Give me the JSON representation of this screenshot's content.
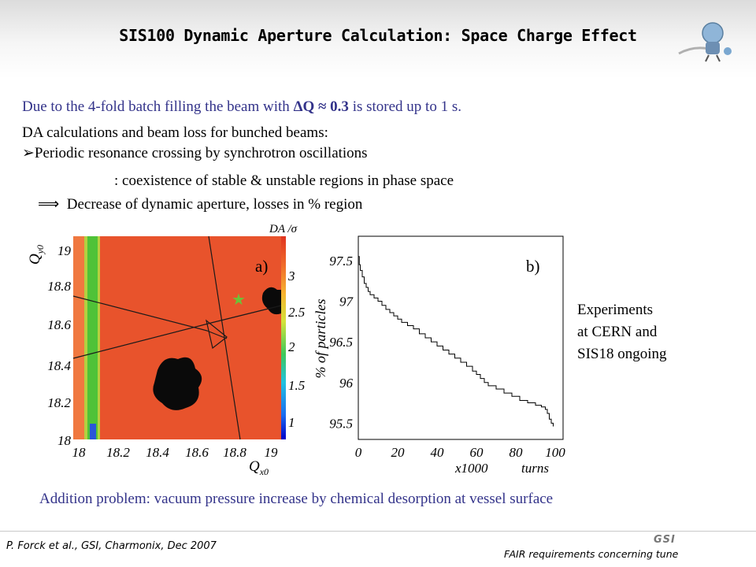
{
  "title": "SIS100 Dynamic Aperture Calculation: Space Charge Effect",
  "body": {
    "line1_pre": "Due to the 4-fold batch filling the beam with ",
    "line1_bold": "ΔQ ≈ 0.3",
    "line1_post": " is stored up to 1 s.",
    "line2": "DA calculations and beam loss for bunched beams:",
    "bullet_symbol": "➢",
    "line3": "Periodic resonance crossing by synchrotron oscillations",
    "line4": ": coexistence of stable & unstable regions in phase space",
    "arrow_symbol": "⟹",
    "line5": "Decrease of dynamic aperture, losses in % region"
  },
  "plot_a": {
    "panel_label": "a)",
    "colorbar_label": "DA /σ",
    "colorbar_ticks": [
      "3",
      "2.5",
      "2",
      "1.5",
      "1"
    ],
    "y_axis_label": "Q",
    "y_axis_sub": "y0",
    "y_ticks": [
      "19",
      "18.8",
      "18.6",
      "18.4",
      "18.2",
      "18"
    ],
    "x_axis_label": "Q",
    "x_axis_sub": "x0",
    "x_ticks": [
      "18",
      "18.2",
      "18.4",
      "18.6",
      "18.8",
      "19"
    ],
    "marker_symbol": "★",
    "colors": {
      "main": "#e8532c",
      "edge": "#f07840",
      "band": "#4fc238",
      "island": "#0a0a0a",
      "marker": "#6dc238"
    }
  },
  "plot_b": {
    "panel_label": "b)",
    "y_axis_label": "% of particles",
    "y_ticks": [
      "97.5",
      "97",
      "96.5",
      "96",
      "95.5"
    ],
    "x_ticks": [
      "0",
      "20",
      "40",
      "60",
      "80",
      "100"
    ],
    "x_label_left": "x1000",
    "x_label_right": "turns",
    "ylim": [
      95.3,
      97.8
    ],
    "xlim": [
      0,
      104
    ],
    "curve": [
      [
        0,
        97.55
      ],
      [
        0.5,
        97.45
      ],
      [
        1,
        97.38
      ],
      [
        2,
        97.3
      ],
      [
        3,
        97.22
      ],
      [
        4,
        97.17
      ],
      [
        5,
        97.12
      ],
      [
        6,
        97.08
      ],
      [
        8,
        97.04
      ],
      [
        10,
        97.0
      ],
      [
        12,
        96.95
      ],
      [
        14,
        96.9
      ],
      [
        16,
        96.86
      ],
      [
        18,
        96.82
      ],
      [
        20,
        96.78
      ],
      [
        22,
        96.74
      ],
      [
        25,
        96.7
      ],
      [
        28,
        96.66
      ],
      [
        31,
        96.6
      ],
      [
        34,
        96.55
      ],
      [
        37,
        96.5
      ],
      [
        40,
        96.45
      ],
      [
        43,
        96.4
      ],
      [
        46,
        96.35
      ],
      [
        49,
        96.3
      ],
      [
        52,
        96.25
      ],
      [
        55,
        96.2
      ],
      [
        58,
        96.14
      ],
      [
        60,
        96.1
      ],
      [
        62,
        96.05
      ],
      [
        64,
        96.0
      ],
      [
        66,
        95.96
      ],
      [
        70,
        95.92
      ],
      [
        74,
        95.87
      ],
      [
        78,
        95.83
      ],
      [
        82,
        95.78
      ],
      [
        86,
        95.75
      ],
      [
        90,
        95.72
      ],
      [
        93,
        95.7
      ],
      [
        95,
        95.67
      ],
      [
        96,
        95.62
      ],
      [
        97,
        95.55
      ],
      [
        98,
        95.5
      ],
      [
        99,
        95.46
      ]
    ]
  },
  "side_note": [
    "Experiments",
    "at CERN and",
    "SIS18 ongoing"
  ],
  "bottom_note": "Addition problem: vacuum pressure increase by chemical desorption at vessel surface",
  "footer": {
    "left": "P. Forck et al., GSI, Charmonix,  Dec 2007",
    "right": "FAIR requirements concerning tune",
    "logo_text": "GSI"
  }
}
